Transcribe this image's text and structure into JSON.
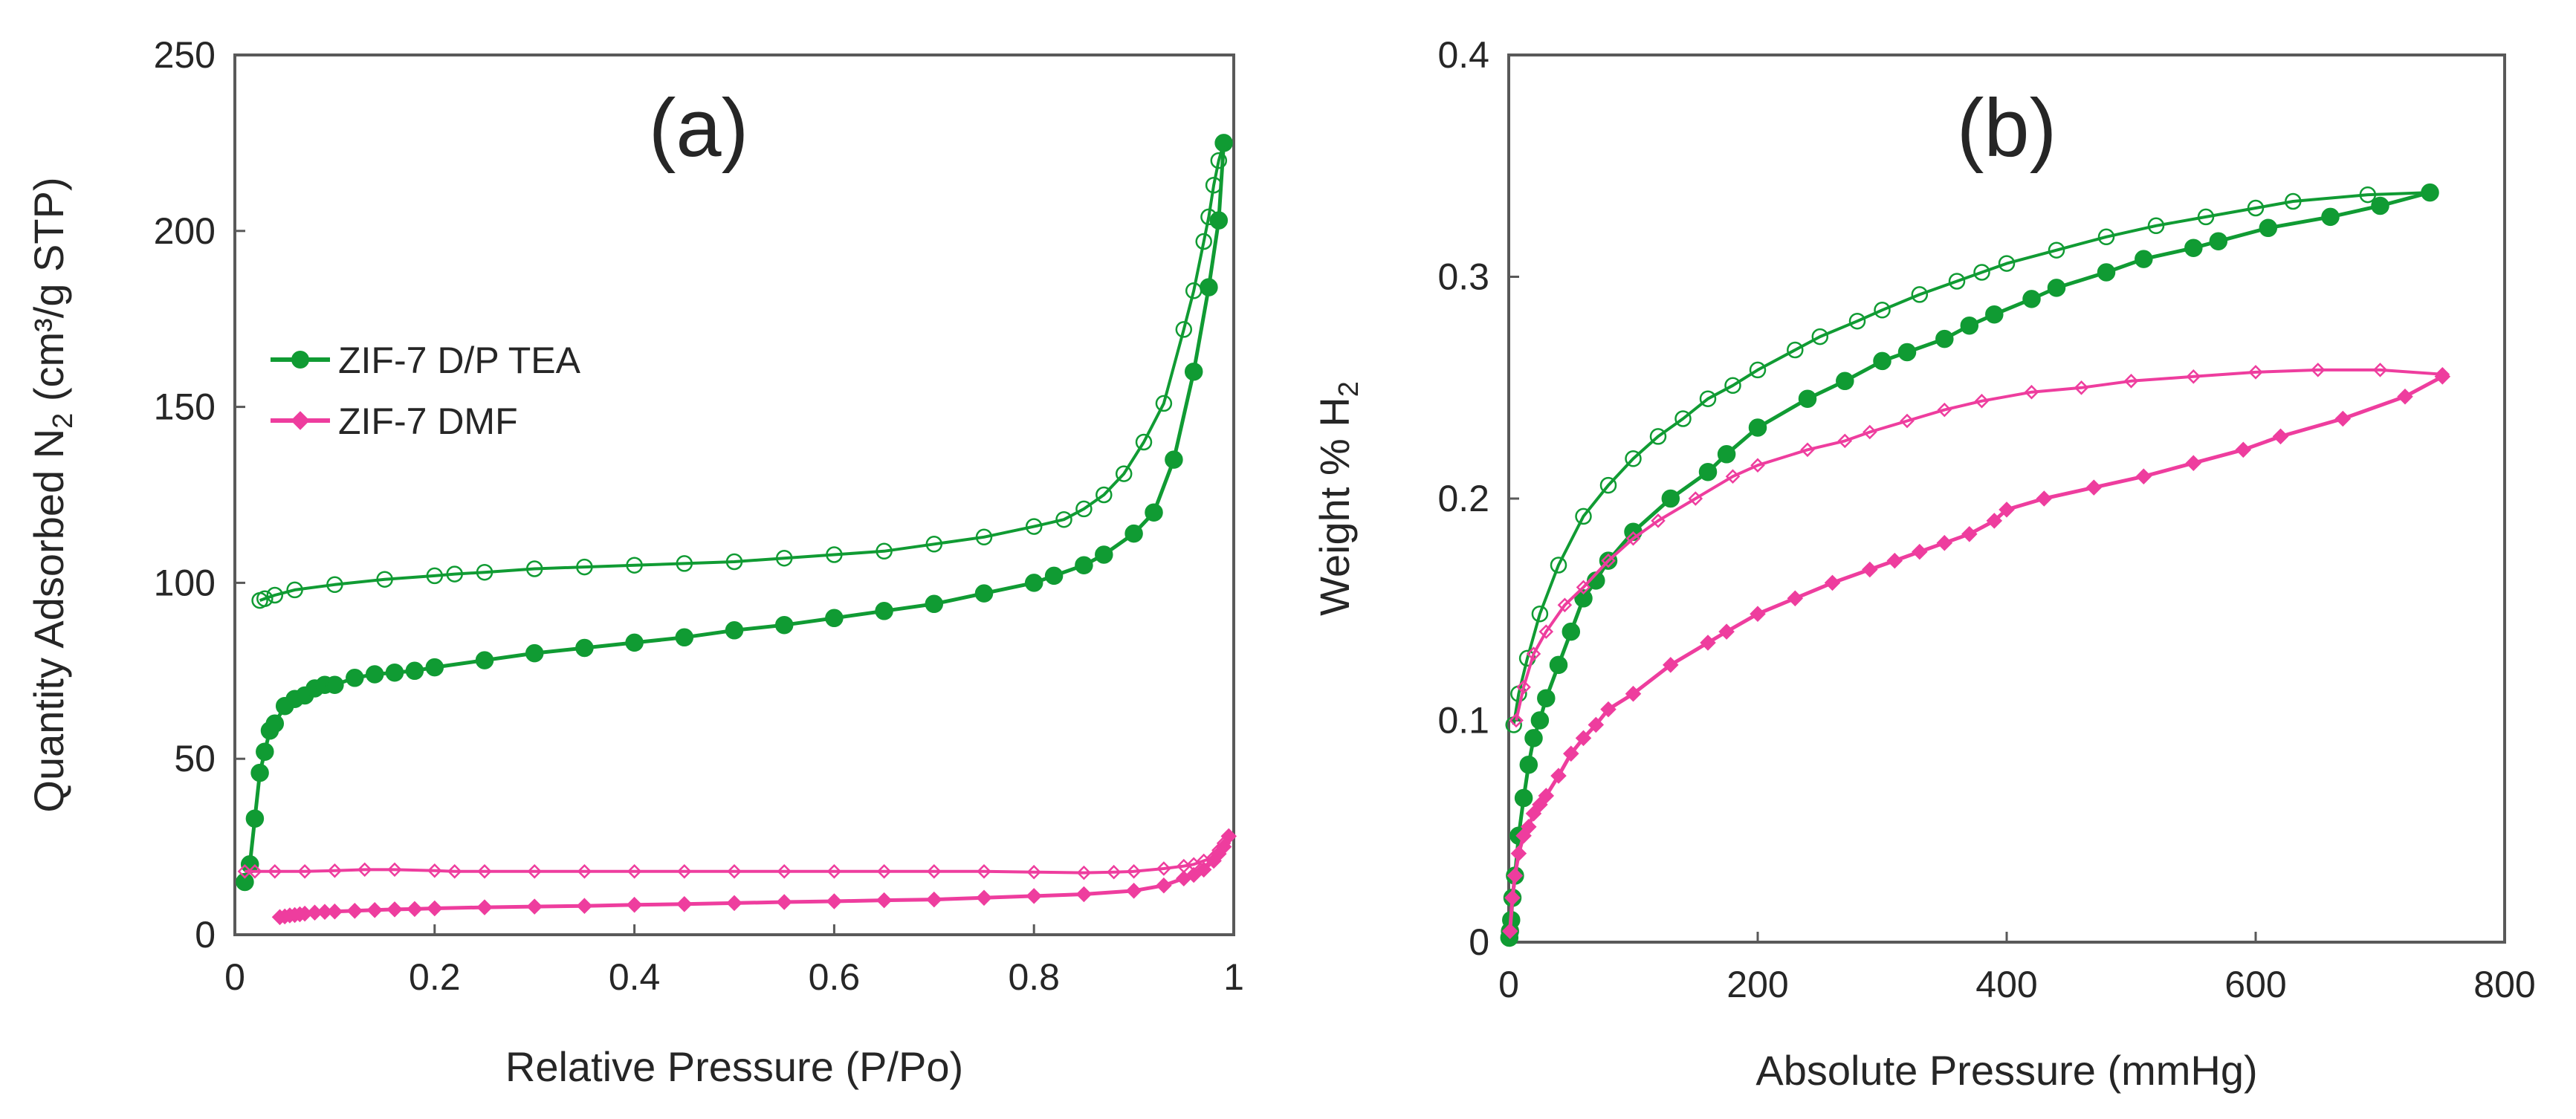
{
  "chart_data": [
    {
      "type": "scatter",
      "panel_label": "(a)",
      "xlabel": "Relative Pressure (P/Po)",
      "ylabel_main": "Quantity Adsorbed N",
      "ylabel_sub": "2",
      "ylabel_tail": " (cm³/g STP)",
      "xlim": [
        0,
        1
      ],
      "ylim": [
        0,
        250
      ],
      "xticks": [
        "0",
        "0.2",
        "0.4",
        "0.6",
        "0.8",
        "1"
      ],
      "yticks": [
        "0",
        "50",
        "100",
        "150",
        "200",
        "250"
      ],
      "xtick_values": [
        0,
        0.2,
        0.4,
        0.6,
        0.8,
        1
      ],
      "ytick_values": [
        0,
        50,
        100,
        150,
        200,
        250
      ],
      "legend_position": "center-left",
      "legend": [
        {
          "label": "ZIF-7 D/P TEA",
          "color": "#109B33",
          "marker": "circle"
        },
        {
          "label": "ZIF-7 DMF",
          "color": "#EE3D9E",
          "marker": "diamond"
        }
      ],
      "series": [
        {
          "name": "ZIF-7 D/P TEA adsorption",
          "color": "#109B33",
          "marker": "circle",
          "filled": true,
          "x": [
            0.01,
            0.015,
            0.02,
            0.025,
            0.03,
            0.035,
            0.04,
            0.05,
            0.06,
            0.07,
            0.08,
            0.09,
            0.1,
            0.12,
            0.14,
            0.16,
            0.18,
            0.2,
            0.25,
            0.3,
            0.35,
            0.4,
            0.45,
            0.5,
            0.55,
            0.6,
            0.65,
            0.7,
            0.75,
            0.8,
            0.82,
            0.85,
            0.87,
            0.9,
            0.92,
            0.94,
            0.96,
            0.975,
            0.985,
            0.99
          ],
          "y": [
            15,
            20,
            33,
            46,
            52,
            58,
            60,
            65,
            67,
            68,
            70,
            71,
            71,
            73,
            74,
            74.5,
            75,
            76,
            78,
            80,
            81.5,
            83,
            84.5,
            86.5,
            88,
            90,
            92,
            94,
            97,
            100,
            102,
            105,
            108,
            114,
            120,
            135,
            160,
            184,
            203,
            225
          ]
        },
        {
          "name": "ZIF-7 D/P TEA desorption",
          "color": "#109B33",
          "marker": "circle",
          "filled": false,
          "x": [
            0.99,
            0.985,
            0.98,
            0.975,
            0.97,
            0.96,
            0.95,
            0.93,
            0.91,
            0.89,
            0.87,
            0.85,
            0.83,
            0.8,
            0.75,
            0.7,
            0.65,
            0.6,
            0.55,
            0.5,
            0.45,
            0.4,
            0.35,
            0.3,
            0.25,
            0.22,
            0.2,
            0.15,
            0.1,
            0.06,
            0.04,
            0.03,
            0.025
          ],
          "y": [
            225,
            220,
            213,
            204,
            197,
            183,
            172,
            151,
            140,
            131,
            125,
            121,
            118,
            116,
            113,
            111,
            109,
            108,
            107,
            106,
            105.5,
            105,
            104.5,
            104,
            103,
            102.5,
            102,
            101,
            99.5,
            98,
            96.5,
            95.5,
            95
          ]
        },
        {
          "name": "ZIF-7 DMF adsorption",
          "color": "#EE3D9E",
          "marker": "diamond",
          "filled": true,
          "x": [
            0.045,
            0.05,
            0.055,
            0.06,
            0.065,
            0.07,
            0.08,
            0.09,
            0.1,
            0.12,
            0.14,
            0.16,
            0.18,
            0.2,
            0.25,
            0.3,
            0.35,
            0.4,
            0.45,
            0.5,
            0.55,
            0.6,
            0.65,
            0.7,
            0.75,
            0.8,
            0.85,
            0.9,
            0.93,
            0.95,
            0.96,
            0.97,
            0.98,
            0.985,
            0.99,
            0.995
          ],
          "y": [
            5,
            5.2,
            5.5,
            5.6,
            5.8,
            6,
            6.3,
            6.5,
            6.6,
            6.8,
            7,
            7.2,
            7.3,
            7.5,
            7.8,
            8,
            8.2,
            8.5,
            8.7,
            9,
            9.3,
            9.5,
            9.8,
            10,
            10.5,
            11,
            11.5,
            12.5,
            14,
            16,
            17,
            18.5,
            21,
            23,
            25,
            28
          ]
        },
        {
          "name": "ZIF-7 DMF desorption",
          "color": "#EE3D9E",
          "marker": "diamond",
          "filled": false,
          "x": [
            0.995,
            0.99,
            0.985,
            0.98,
            0.97,
            0.96,
            0.95,
            0.93,
            0.9,
            0.88,
            0.85,
            0.8,
            0.75,
            0.7,
            0.65,
            0.6,
            0.55,
            0.5,
            0.45,
            0.4,
            0.35,
            0.3,
            0.25,
            0.22,
            0.2,
            0.16,
            0.13,
            0.1,
            0.07,
            0.04,
            0.02,
            0.01
          ],
          "y": [
            28,
            26,
            24,
            22,
            21,
            20,
            19.5,
            18.8,
            18,
            17.8,
            17.6,
            17.8,
            18,
            18,
            18,
            18,
            18,
            18,
            18,
            18,
            18,
            18,
            18,
            18,
            18.2,
            18.5,
            18.5,
            18.2,
            18,
            18,
            18,
            18
          ]
        }
      ]
    },
    {
      "type": "scatter",
      "panel_label": "(b)",
      "xlabel": "Absolute Pressure (mmHg)",
      "ylabel_main": "Weight % H",
      "ylabel_sub": "2",
      "ylabel_tail": "",
      "xlim": [
        0,
        800
      ],
      "ylim": [
        0,
        0.4
      ],
      "xticks": [
        "0",
        "200",
        "400",
        "600",
        "800"
      ],
      "yticks": [
        "0",
        "0.1",
        "0.2",
        "0.3",
        "0.4"
      ],
      "xtick_values": [
        0,
        200,
        400,
        600,
        800
      ],
      "ytick_values": [
        0,
        0.1,
        0.2,
        0.3,
        0.4
      ],
      "series": [
        {
          "name": "ZIF-7 D/P TEA adsorption",
          "color": "#109B33",
          "marker": "circle",
          "filled": true,
          "x": [
            0.5,
            1,
            2,
            3,
            5,
            8,
            12,
            16,
            20,
            25,
            30,
            40,
            50,
            60,
            70,
            80,
            100,
            130,
            160,
            175,
            200,
            240,
            270,
            300,
            320,
            350,
            370,
            390,
            420,
            440,
            480,
            510,
            550,
            570,
            610,
            660,
            700,
            740
          ],
          "y": [
            0.002,
            0.005,
            0.01,
            0.02,
            0.03,
            0.048,
            0.065,
            0.08,
            0.092,
            0.1,
            0.11,
            0.125,
            0.14,
            0.155,
            0.163,
            0.172,
            0.185,
            0.2,
            0.212,
            0.22,
            0.232,
            0.245,
            0.253,
            0.262,
            0.266,
            0.272,
            0.278,
            0.283,
            0.29,
            0.295,
            0.302,
            0.308,
            0.313,
            0.316,
            0.322,
            0.327,
            0.332,
            0.338
          ]
        },
        {
          "name": "ZIF-7 D/P TEA desorption",
          "color": "#109B33",
          "marker": "circle",
          "filled": false,
          "x": [
            740,
            690,
            630,
            600,
            560,
            520,
            480,
            440,
            400,
            380,
            360,
            330,
            300,
            280,
            250,
            230,
            200,
            180,
            160,
            140,
            120,
            100,
            80,
            60,
            40,
            25,
            15,
            8,
            4
          ],
          "y": [
            0.338,
            0.337,
            0.334,
            0.331,
            0.327,
            0.323,
            0.318,
            0.312,
            0.306,
            0.302,
            0.298,
            0.292,
            0.285,
            0.28,
            0.273,
            0.267,
            0.258,
            0.251,
            0.245,
            0.236,
            0.228,
            0.218,
            0.206,
            0.192,
            0.17,
            0.148,
            0.128,
            0.112,
            0.098
          ]
        },
        {
          "name": "ZIF-7 DMF adsorption",
          "color": "#EE3D9E",
          "marker": "diamond",
          "filled": true,
          "x": [
            1,
            3,
            5,
            8,
            12,
            16,
            20,
            25,
            30,
            40,
            50,
            60,
            70,
            80,
            100,
            130,
            160,
            175,
            200,
            230,
            260,
            290,
            310,
            330,
            350,
            370,
            390,
            400,
            430,
            470,
            510,
            550,
            590,
            620,
            670,
            720,
            750
          ],
          "y": [
            0.005,
            0.02,
            0.03,
            0.04,
            0.048,
            0.052,
            0.058,
            0.062,
            0.066,
            0.075,
            0.085,
            0.092,
            0.098,
            0.105,
            0.112,
            0.125,
            0.135,
            0.14,
            0.148,
            0.155,
            0.162,
            0.168,
            0.172,
            0.176,
            0.18,
            0.184,
            0.19,
            0.195,
            0.2,
            0.205,
            0.21,
            0.216,
            0.222,
            0.228,
            0.236,
            0.246,
            0.255
          ]
        },
        {
          "name": "ZIF-7 DMF desorption",
          "color": "#EE3D9E",
          "marker": "diamond",
          "filled": false,
          "x": [
            750,
            700,
            650,
            600,
            550,
            500,
            460,
            420,
            380,
            350,
            320,
            290,
            270,
            240,
            200,
            180,
            150,
            120,
            100,
            80,
            60,
            45,
            30,
            20,
            12,
            6
          ],
          "y": [
            0.256,
            0.258,
            0.258,
            0.257,
            0.255,
            0.253,
            0.25,
            0.248,
            0.244,
            0.24,
            0.235,
            0.23,
            0.226,
            0.222,
            0.215,
            0.21,
            0.2,
            0.19,
            0.182,
            0.172,
            0.16,
            0.152,
            0.14,
            0.13,
            0.115,
            0.1
          ]
        }
      ]
    }
  ]
}
